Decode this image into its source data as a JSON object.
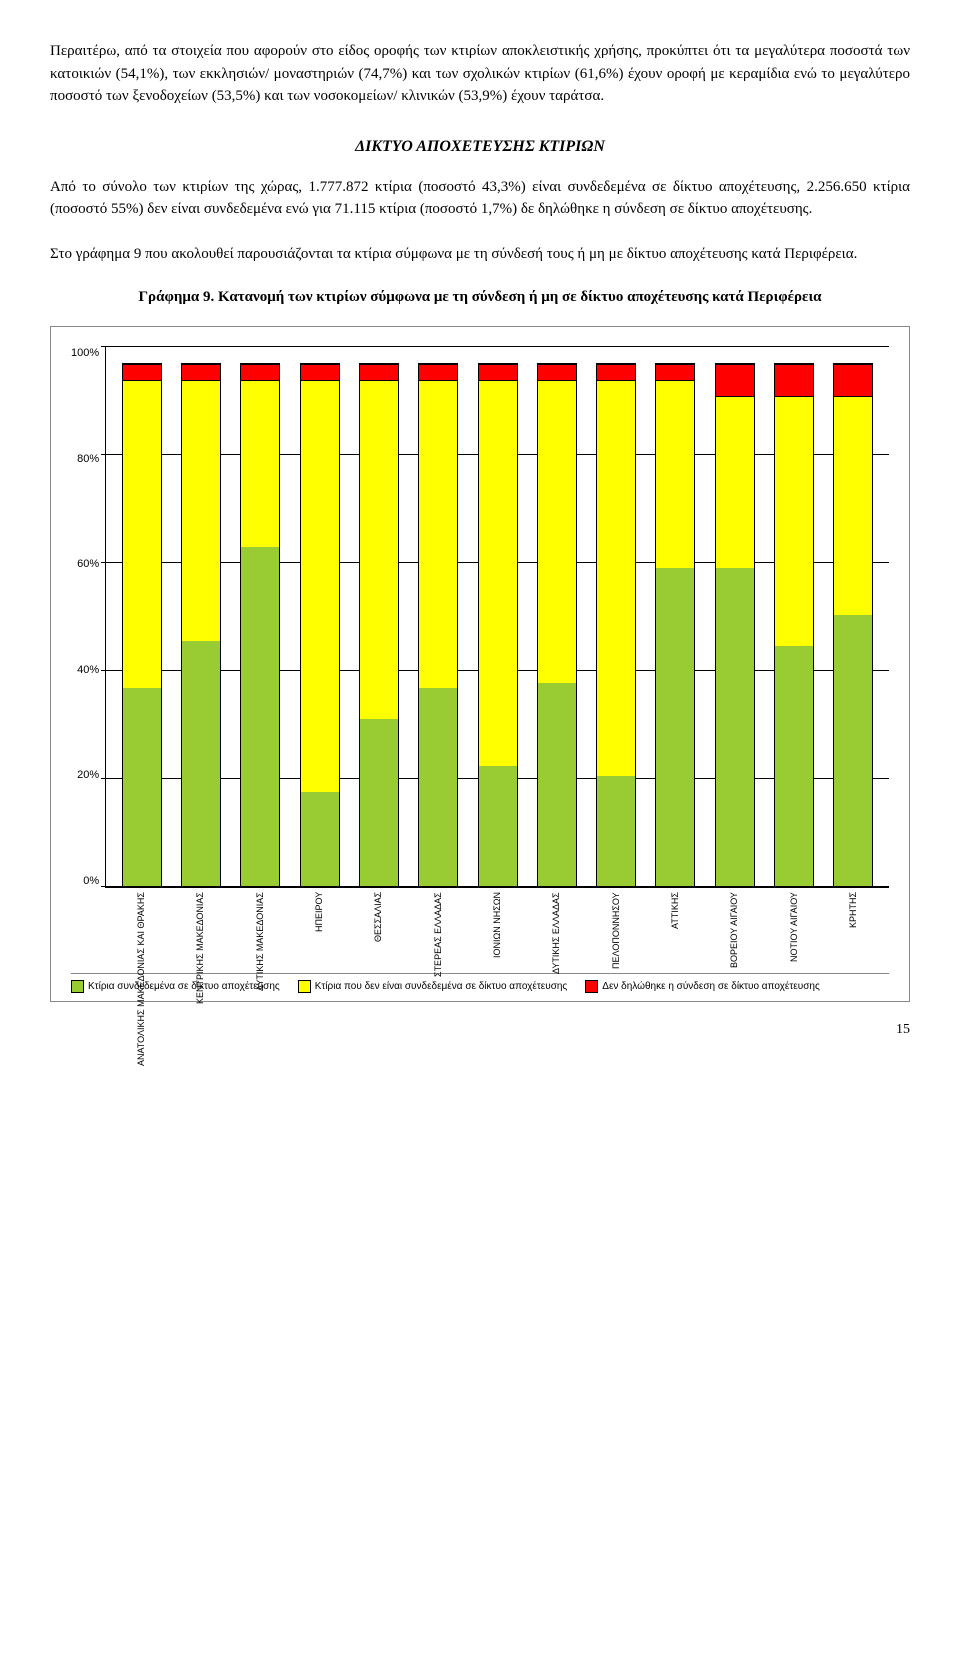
{
  "paragraphs": {
    "p1": "Περαιτέρω, από τα στοιχεία που αφορούν στο είδος οροφής των κτιρίων αποκλειστικής χρήσης, προκύπτει ότι τα μεγαλύτερα ποσοστά των κατοικιών (54,1%), των εκκλησιών/ μοναστηριών (74,7%) και των σχολικών κτιρίων (61,6%) έχουν οροφή με κεραμίδια ενώ το μεγαλύτερο ποσοστό των ξενοδοχείων (53,5%) και των νοσοκομείων/ κλινικών (53,9%) έχουν ταράτσα.",
    "p2": "Από το σύνολο των κτιρίων της χώρας, 1.777.872 κτίρια (ποσοστό 43,3%) είναι συνδεδεμένα σε δίκτυο αποχέτευσης, 2.256.650 κτίρια (ποσοστό 55%) δεν είναι συνδεδεμένα ενώ για 71.115 κτίρια (ποσοστό 1,7%) δε δηλώθηκε η σύνδεση σε δίκτυο αποχέτευσης.",
    "p3": "Στο γράφημα 9 που ακολουθεί παρουσιάζονται τα κτίρια σύμφωνα με τη σύνδεσή τους ή μη με δίκτυο αποχέτευσης κατά Περιφέρεια."
  },
  "section_heading": "ΔΙΚΤΥΟ ΑΠΟΧΕΤΕΥΣΗΣ ΚΤΙΡΙΩΝ",
  "chart_title": "Γράφημα 9. Κατανομή των κτιρίων σύμφωνα με τη σύνδεση ή μη σε δίκτυο αποχέτευσης κατά Περιφέρεια",
  "chart": {
    "type": "stacked-bar",
    "ylim": [
      0,
      100
    ],
    "ytick_step": 20,
    "yticks": [
      "100%",
      "80%",
      "60%",
      "40%",
      "20%",
      "0%"
    ],
    "colors": {
      "connected": "#99cc33",
      "not_connected": "#ffff00",
      "not_declared": "#ff0000",
      "grid": "#000000",
      "background": "#ffffff"
    },
    "categories": [
      "ΑΝΑΤΟΛΙΚΗΣ ΜΑΚΕΔΟΝΙΑΣ ΚΑΙ ΘΡΑΚΗΣ",
      "ΚΕΝΤΡΙΚΗΣ ΜΑΚΕΔΟΝΙΑΣ",
      "ΔΥΤΙΚΗΣ ΜΑΚΕΔΟΝΙΑΣ",
      "ΗΠΕΙΡΟΥ",
      "ΘΕΣΣΑΛΙΑΣ",
      "ΣΤΕΡΕΑΣ ΕΛΛΑΔΑΣ",
      "ΙΟΝΙΩΝ ΝΗΣΩΝ",
      "ΔΥΤΙΚΗΣ ΕΛΛΑΔΑΣ",
      "ΠΕΛΟΠΟΝΝΗΣΟΥ",
      "ΑΤΤΙΚΗΣ",
      "ΒΟΡΕΙΟΥ ΑΙΓΑΙΟΥ",
      "ΝΟΤΙΟΥ ΑΙΓΑΙΟΥ",
      "ΚΡΗΤΗΣ"
    ],
    "series": [
      {
        "connected": 38,
        "not_connected": 59,
        "not_declared": 3
      },
      {
        "connected": 47,
        "not_connected": 50,
        "not_declared": 3
      },
      {
        "connected": 65,
        "not_connected": 32,
        "not_declared": 3
      },
      {
        "connected": 18,
        "not_connected": 79,
        "not_declared": 3
      },
      {
        "connected": 32,
        "not_connected": 65,
        "not_declared": 3
      },
      {
        "connected": 38,
        "not_connected": 59,
        "not_declared": 3
      },
      {
        "connected": 23,
        "not_connected": 74,
        "not_declared": 3
      },
      {
        "connected": 39,
        "not_connected": 58,
        "not_declared": 3
      },
      {
        "connected": 21,
        "not_connected": 76,
        "not_declared": 3
      },
      {
        "connected": 61,
        "not_connected": 36,
        "not_declared": 3
      },
      {
        "connected": 61,
        "not_connected": 33,
        "not_declared": 6
      },
      {
        "connected": 46,
        "not_connected": 48,
        "not_declared": 6
      },
      {
        "connected": 52,
        "not_connected": 42,
        "not_declared": 6
      }
    ],
    "legend": [
      {
        "key": "connected",
        "label": "Κτίρια συνδεδεμένα σε δίκτυο αποχέτευσης"
      },
      {
        "key": "not_connected",
        "label": "Κτίρια που δεν είναι συνδεδεμένα σε δίκτυο αποχέτευσης"
      },
      {
        "key": "not_declared",
        "label": "Δεν δηλώθηκε η σύνδεση σε δίκτυο αποχέτευσης"
      }
    ]
  },
  "page_number": "15"
}
